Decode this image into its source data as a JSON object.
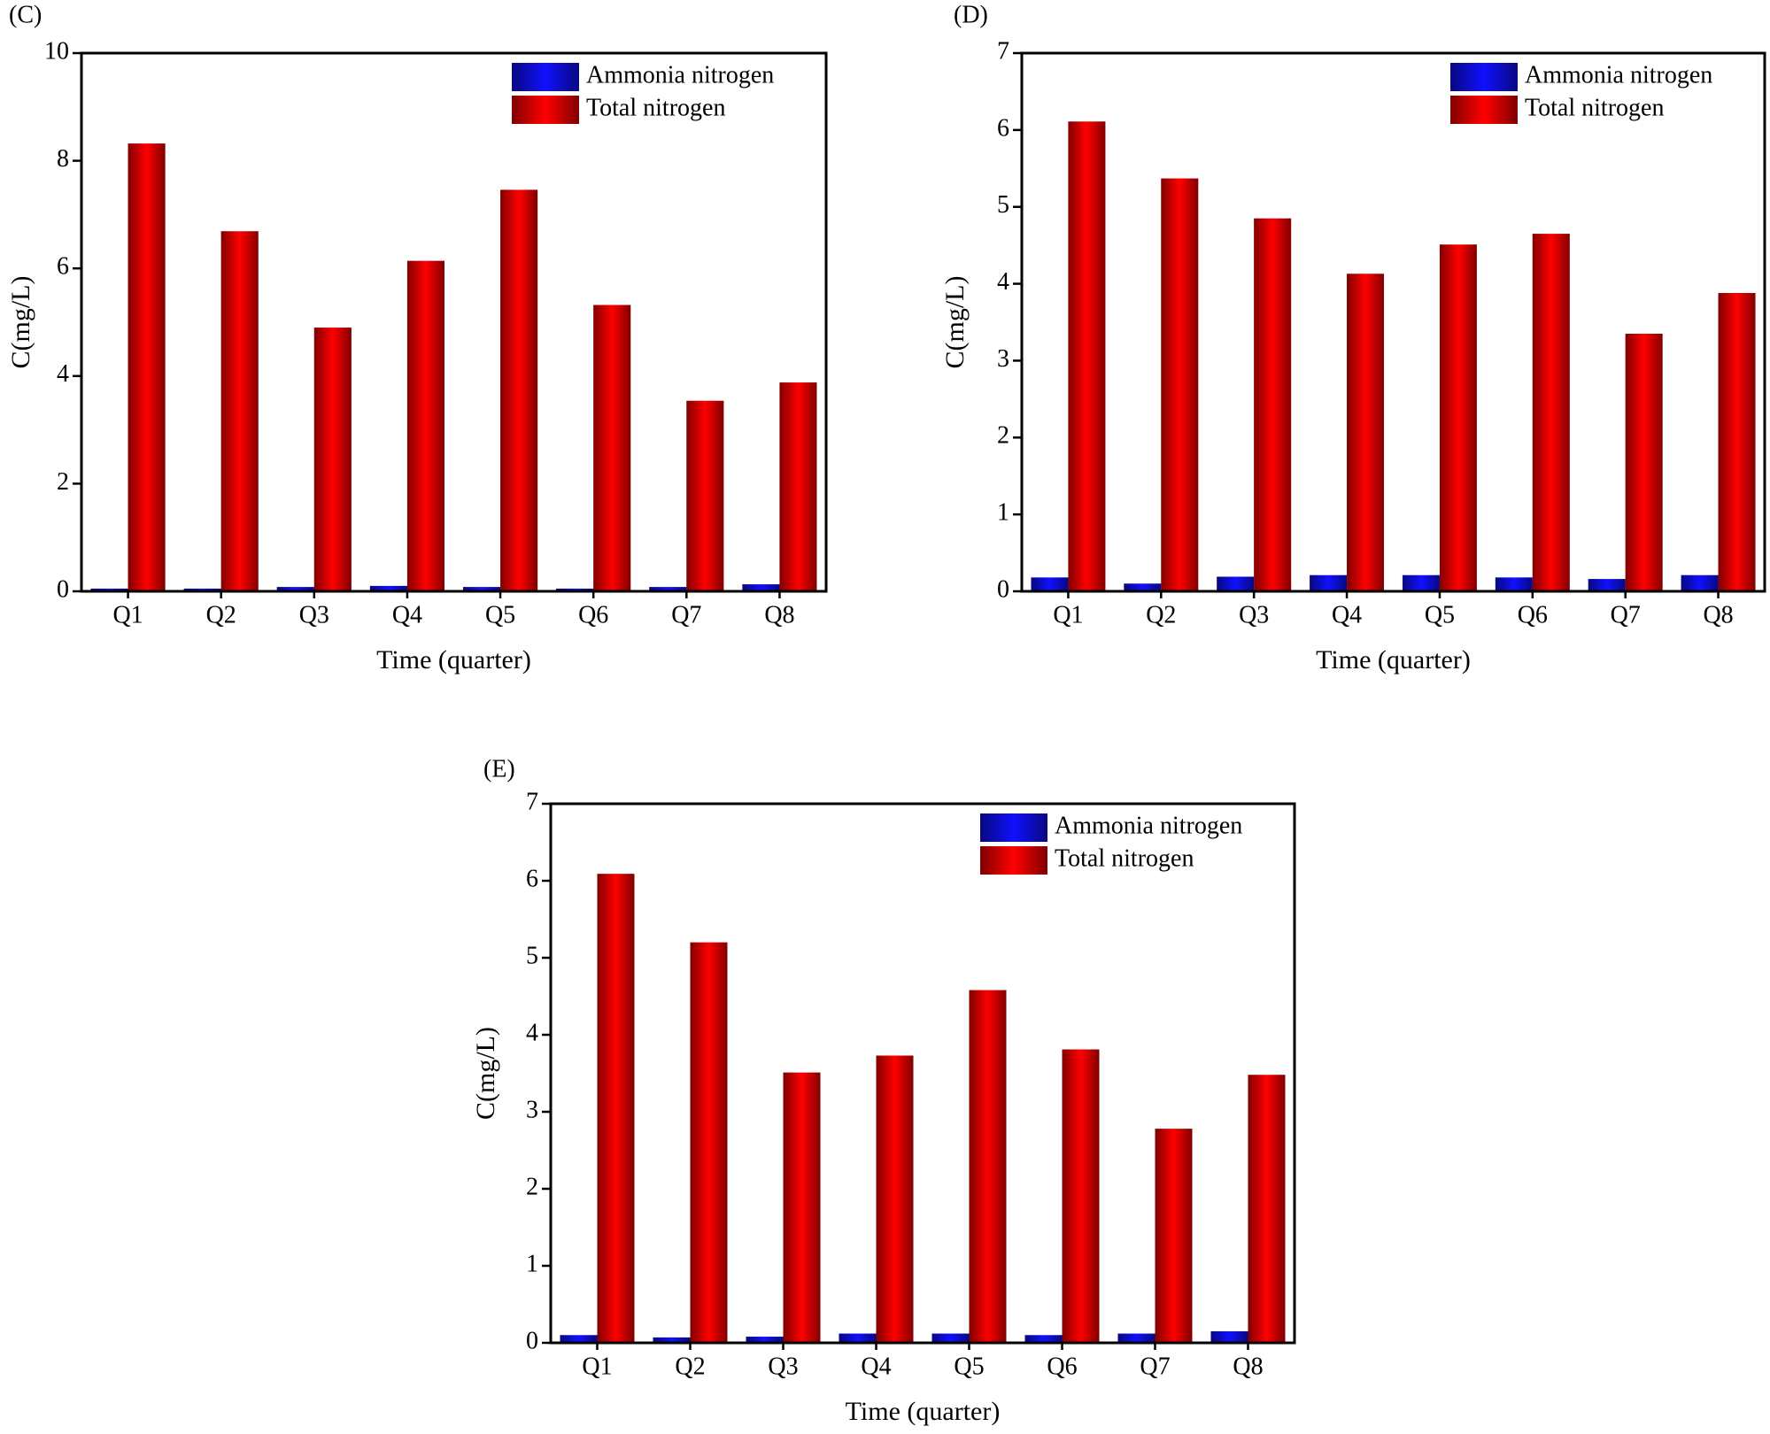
{
  "chart_data": [
    {
      "type": "bar",
      "label": "(C)",
      "x_label": "Time (quarter)",
      "y_label": "C(mg/L)",
      "categories": [
        "Q1",
        "Q2",
        "Q3",
        "Q4",
        "Q5",
        "Q6",
        "Q7",
        "Q8"
      ],
      "series": [
        {
          "name": "Ammonia nitrogen",
          "color": "#1010ff",
          "values": [
            0.05,
            0.05,
            0.08,
            0.1,
            0.08,
            0.05,
            0.08,
            0.13
          ]
        },
        {
          "name": "Total nitrogen",
          "color": "#ff0000",
          "values": [
            8.32,
            6.69,
            4.9,
            6.14,
            7.46,
            5.32,
            3.54,
            3.88
          ]
        }
      ],
      "ylim": [
        0,
        10
      ],
      "yticks": [
        0,
        2,
        4,
        6,
        8,
        10
      ],
      "legend": "upper right"
    },
    {
      "type": "bar",
      "label": "(D)",
      "x_label": "Time (quarter)",
      "y_label": "C(mg/L)",
      "categories": [
        "Q1",
        "Q2",
        "Q3",
        "Q4",
        "Q5",
        "Q6",
        "Q7",
        "Q8"
      ],
      "series": [
        {
          "name": "Ammonia nitrogen",
          "color": "#1010ff",
          "values": [
            0.18,
            0.1,
            0.19,
            0.21,
            0.21,
            0.18,
            0.16,
            0.21
          ]
        },
        {
          "name": "Total nitrogen",
          "color": "#ff0000",
          "values": [
            6.11,
            5.37,
            4.85,
            4.13,
            4.51,
            4.65,
            3.35,
            3.88
          ]
        }
      ],
      "ylim": [
        0,
        7
      ],
      "yticks": [
        0,
        1,
        2,
        3,
        4,
        5,
        6,
        7
      ],
      "legend": "upper right"
    },
    {
      "type": "bar",
      "label": "(E)",
      "x_label": "Time (quarter)",
      "y_label": "C(mg/L)",
      "categories": [
        "Q1",
        "Q2",
        "Q3",
        "Q4",
        "Q5",
        "Q6",
        "Q7",
        "Q8"
      ],
      "series": [
        {
          "name": "Ammonia nitrogen",
          "color": "#1010ff",
          "values": [
            0.1,
            0.07,
            0.08,
            0.12,
            0.12,
            0.1,
            0.12,
            0.15
          ]
        },
        {
          "name": "Total nitrogen",
          "color": "#ff0000",
          "values": [
            6.09,
            5.2,
            3.51,
            3.73,
            4.58,
            3.81,
            2.78,
            3.48
          ]
        }
      ],
      "ylim": [
        0,
        7
      ],
      "yticks": [
        0,
        1,
        2,
        3,
        4,
        5,
        6,
        7
      ],
      "legend": "upper right"
    }
  ]
}
